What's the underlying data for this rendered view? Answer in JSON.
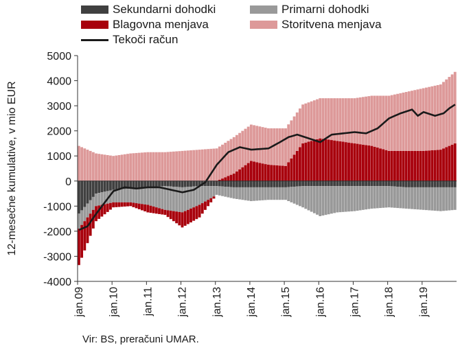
{
  "chart_data": {
    "type": "bar",
    "title": "",
    "ylabel": "12-mesečne kumulative, v mio EUR",
    "xlabel": "",
    "ylim": [
      -4000,
      5000
    ],
    "yticks": [
      5000,
      4000,
      3000,
      2000,
      1000,
      0,
      -1000,
      -2000,
      -3000,
      -4000
    ],
    "ytick_labels": [
      "5000",
      "4000",
      "3000",
      "2000",
      "1000",
      "0",
      "-1000",
      "-2000",
      "-3000",
      "-4000"
    ],
    "xtick_labels": [
      "jan.09",
      "jan.10",
      "jan.11",
      "jan.12",
      "jan.13",
      "jan.14",
      "jan.15",
      "jan.16",
      "jan.17",
      "jan.18",
      "jan.19"
    ],
    "grid": false,
    "legend_placement": "top",
    "stacked": true,
    "x": {
      "start": "jan.09",
      "frequency": "monthly",
      "months": 132
    },
    "series": [
      {
        "name": "Sekundarni dohodki",
        "color": "#404040",
        "anchors": [
          [
            0,
            -1300
          ],
          [
            6,
            -500
          ],
          [
            12,
            -350
          ],
          [
            18,
            -300
          ],
          [
            24,
            -250
          ],
          [
            30,
            -200
          ],
          [
            36,
            -250
          ],
          [
            42,
            -200
          ],
          [
            48,
            -200
          ],
          [
            54,
            -250
          ],
          [
            60,
            -250
          ],
          [
            66,
            -250
          ],
          [
            72,
            -250
          ],
          [
            78,
            -200
          ],
          [
            84,
            -200
          ],
          [
            90,
            -200
          ],
          [
            96,
            -200
          ],
          [
            102,
            -200
          ],
          [
            108,
            -200
          ],
          [
            114,
            -250
          ],
          [
            120,
            -250
          ],
          [
            126,
            -250
          ],
          [
            131,
            -250
          ]
        ]
      },
      {
        "name": "Primarni dohodki",
        "color": "#999999",
        "anchors": [
          [
            0,
            -600
          ],
          [
            6,
            -500
          ],
          [
            12,
            -500
          ],
          [
            18,
            -550
          ],
          [
            24,
            -700
          ],
          [
            30,
            -950
          ],
          [
            36,
            -1000
          ],
          [
            42,
            -750
          ],
          [
            48,
            -350
          ],
          [
            54,
            -450
          ],
          [
            60,
            -550
          ],
          [
            66,
            -500
          ],
          [
            72,
            -500
          ],
          [
            78,
            -850
          ],
          [
            84,
            -1200
          ],
          [
            90,
            -1050
          ],
          [
            96,
            -1000
          ],
          [
            102,
            -900
          ],
          [
            108,
            -850
          ],
          [
            114,
            -850
          ],
          [
            120,
            -900
          ],
          [
            126,
            -950
          ],
          [
            131,
            -900
          ]
        ]
      },
      {
        "name": "Blagovna menjava",
        "color": "#a8000c",
        "anchors": [
          [
            0,
            -1450
          ],
          [
            6,
            -600
          ],
          [
            12,
            -200
          ],
          [
            18,
            -150
          ],
          [
            24,
            -300
          ],
          [
            30,
            -200
          ],
          [
            36,
            -600
          ],
          [
            42,
            -500
          ],
          [
            48,
            0
          ],
          [
            54,
            300
          ],
          [
            60,
            800
          ],
          [
            66,
            650
          ],
          [
            72,
            600
          ],
          [
            78,
            1500
          ],
          [
            84,
            1700
          ],
          [
            90,
            1600
          ],
          [
            96,
            1500
          ],
          [
            102,
            1400
          ],
          [
            108,
            1200
          ],
          [
            114,
            1200
          ],
          [
            120,
            1200
          ],
          [
            126,
            1250
          ],
          [
            131,
            1500
          ]
        ]
      },
      {
        "name": "Storitvena menjava",
        "color": "#dd9999",
        "anchors": [
          [
            0,
            1400
          ],
          [
            6,
            1100
          ],
          [
            12,
            1000
          ],
          [
            18,
            1100
          ],
          [
            24,
            1150
          ],
          [
            30,
            1150
          ],
          [
            36,
            1200
          ],
          [
            42,
            1250
          ],
          [
            48,
            1300
          ],
          [
            54,
            1450
          ],
          [
            60,
            1450
          ],
          [
            66,
            1450
          ],
          [
            72,
            1500
          ],
          [
            78,
            1550
          ],
          [
            84,
            1600
          ],
          [
            90,
            1700
          ],
          [
            96,
            1800
          ],
          [
            102,
            2000
          ],
          [
            108,
            2200
          ],
          [
            114,
            2350
          ],
          [
            120,
            2500
          ],
          [
            126,
            2600
          ],
          [
            131,
            2850
          ]
        ]
      },
      {
        "name": "Tekoči račun",
        "color": "#1a1a1a",
        "type": "line",
        "anchors": [
          [
            0,
            -1950
          ],
          [
            3,
            -1800
          ],
          [
            6,
            -1300
          ],
          [
            9,
            -850
          ],
          [
            12,
            -400
          ],
          [
            16,
            -250
          ],
          [
            20,
            -300
          ],
          [
            24,
            -250
          ],
          [
            28,
            -250
          ],
          [
            32,
            -350
          ],
          [
            36,
            -450
          ],
          [
            40,
            -350
          ],
          [
            44,
            -50
          ],
          [
            48,
            650
          ],
          [
            52,
            1150
          ],
          [
            56,
            1350
          ],
          [
            60,
            1250
          ],
          [
            66,
            1300
          ],
          [
            70,
            1550
          ],
          [
            73,
            1750
          ],
          [
            76,
            1850
          ],
          [
            80,
            1700
          ],
          [
            84,
            1550
          ],
          [
            88,
            1850
          ],
          [
            92,
            1900
          ],
          [
            96,
            1950
          ],
          [
            100,
            1900
          ],
          [
            104,
            2100
          ],
          [
            108,
            2500
          ],
          [
            112,
            2700
          ],
          [
            116,
            2850
          ],
          [
            118,
            2600
          ],
          [
            120,
            2750
          ],
          [
            124,
            2600
          ],
          [
            127,
            2700
          ],
          [
            129,
            2900
          ],
          [
            131,
            3050
          ]
        ]
      }
    ]
  },
  "legend": {
    "items": [
      {
        "label": "Sekundarni dohodki",
        "color": "#404040",
        "kind": "box"
      },
      {
        "label": "Primarni dohodki",
        "color": "#999999",
        "kind": "box"
      },
      {
        "label": "Blagovna menjava",
        "color": "#a8000c",
        "kind": "box"
      },
      {
        "label": "Storitvena menjava",
        "color": "#dd9999",
        "kind": "box"
      },
      {
        "label": "Tekoči račun",
        "color": "#1a1a1a",
        "kind": "line"
      }
    ]
  },
  "source": "Vir: BS, preračuni UMAR."
}
